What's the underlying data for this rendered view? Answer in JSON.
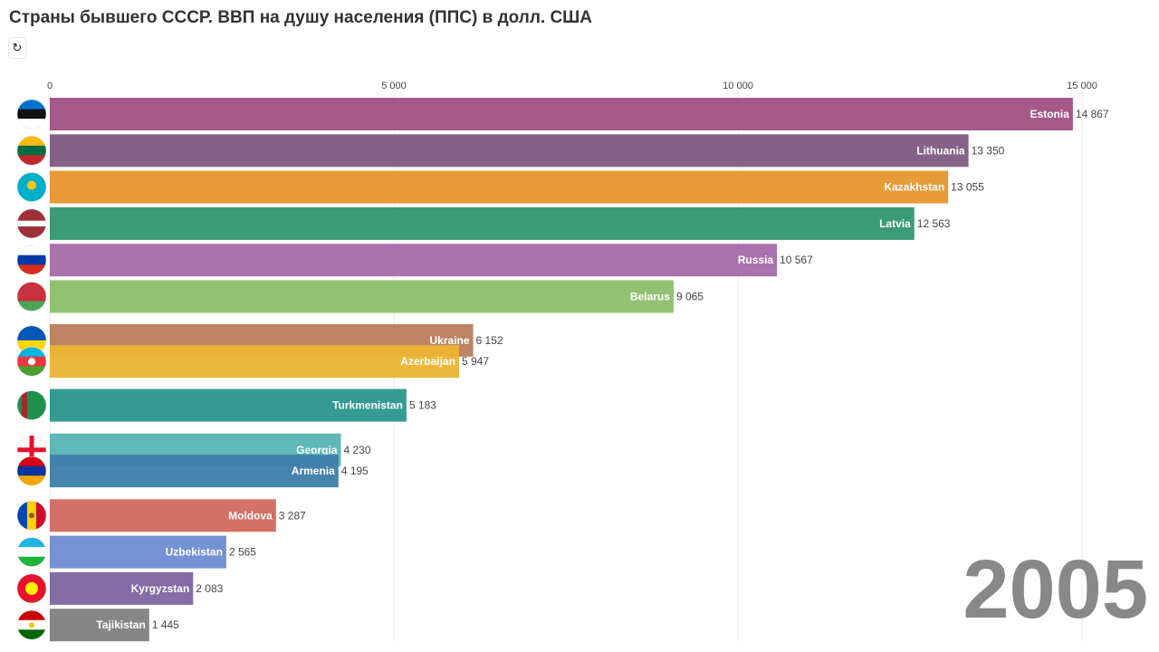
{
  "title": "Страны бывшего СССР. ВВП на душу населения (ППС) в долл. США",
  "replay_icon": "↻",
  "chart_data": {
    "type": "bar",
    "orientation": "horizontal",
    "xlim": [
      0,
      15000
    ],
    "ticks": [
      {
        "value": 0,
        "label": "0"
      },
      {
        "value": 5000,
        "label": "5 000"
      },
      {
        "value": 10000,
        "label": "10 000"
      },
      {
        "value": 15000,
        "label": "15 000"
      }
    ],
    "year": "2005",
    "bars": [
      {
        "name": "Estonia",
        "value": 14867,
        "label": "14 867",
        "color": "#a05082",
        "rank": 0
      },
      {
        "name": "Lithuania",
        "value": 13350,
        "label": "13 350",
        "color": "#805a82",
        "rank": 1
      },
      {
        "name": "Kazakhstan",
        "value": 13055,
        "label": "13 055",
        "color": "#e6962d",
        "rank": 2
      },
      {
        "name": "Latvia",
        "value": 12563,
        "label": "12 563",
        "color": "#329670",
        "rank": 3
      },
      {
        "name": "Russia",
        "value": 10567,
        "label": "10 567",
        "color": "#a46aa8",
        "rank": 4
      },
      {
        "name": "Belarus",
        "value": 9065,
        "label": "9 065",
        "color": "#8cbe6a",
        "rank": 5
      },
      {
        "name": "Ukraine",
        "value": 6152,
        "label": "6 152",
        "color": "#b97c5b",
        "rank": 6.2
      },
      {
        "name": "Azerbaijan",
        "value": 5947,
        "label": "5 947",
        "color": "#ebb432",
        "rank": 6.78
      },
      {
        "name": "Turkmenistan",
        "value": 5183,
        "label": "5 183",
        "color": "#28968c",
        "rank": 7.98
      },
      {
        "name": "Georgia",
        "value": 4230,
        "label": "4 230",
        "color": "#55b4b4",
        "rank": 9.2
      },
      {
        "name": "Armenia",
        "value": 4195,
        "label": "4 195",
        "color": "#3c7daa",
        "rank": 9.78
      },
      {
        "name": "Moldova",
        "value": 3287,
        "label": "3 287",
        "color": "#d2695f",
        "rank": 11
      },
      {
        "name": "Uzbekistan",
        "value": 2565,
        "label": "2 565",
        "color": "#6e8cd2",
        "rank": 12
      },
      {
        "name": "Kyrgyzstan",
        "value": 2083,
        "label": "2 083",
        "color": "#7d64a0",
        "rank": 13
      },
      {
        "name": "Tajikistan",
        "value": 1445,
        "label": "1 445",
        "color": "#7f7f7f",
        "rank": 14
      }
    ]
  }
}
